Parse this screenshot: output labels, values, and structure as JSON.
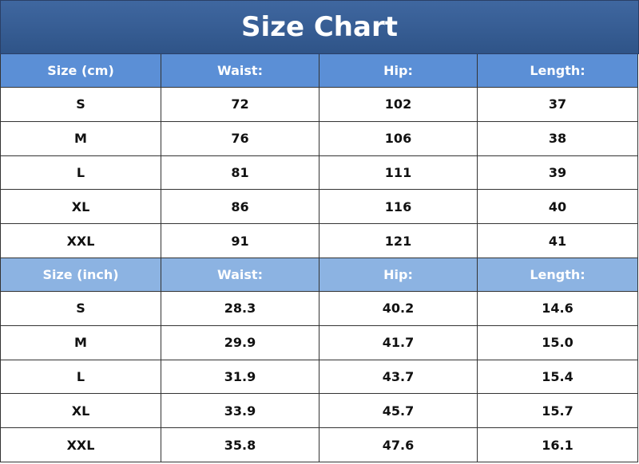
{
  "title": "Size Chart",
  "sections": [
    {
      "header": [
        "Size (cm)",
        "Waist:",
        "Hip:",
        "Length:"
      ],
      "rows": [
        [
          "S",
          "72",
          "102",
          "37"
        ],
        [
          "M",
          "76",
          "106",
          "38"
        ],
        [
          "L",
          "81",
          "111",
          "39"
        ],
        [
          "XL",
          "86",
          "116",
          "40"
        ],
        [
          "XXL",
          "91",
          "121",
          "41"
        ]
      ]
    },
    {
      "header": [
        "Size (inch)",
        "Waist:",
        "Hip:",
        "Length:"
      ],
      "rows": [
        [
          "S",
          "28.3",
          "40.2",
          "14.6"
        ],
        [
          "M",
          "29.9",
          "41.7",
          "15.0"
        ],
        [
          "L",
          "31.9",
          "43.7",
          "15.4"
        ],
        [
          "XL",
          "33.9",
          "45.7",
          "15.7"
        ],
        [
          "XXL",
          "35.8",
          "47.6",
          "16.1"
        ]
      ]
    }
  ]
}
